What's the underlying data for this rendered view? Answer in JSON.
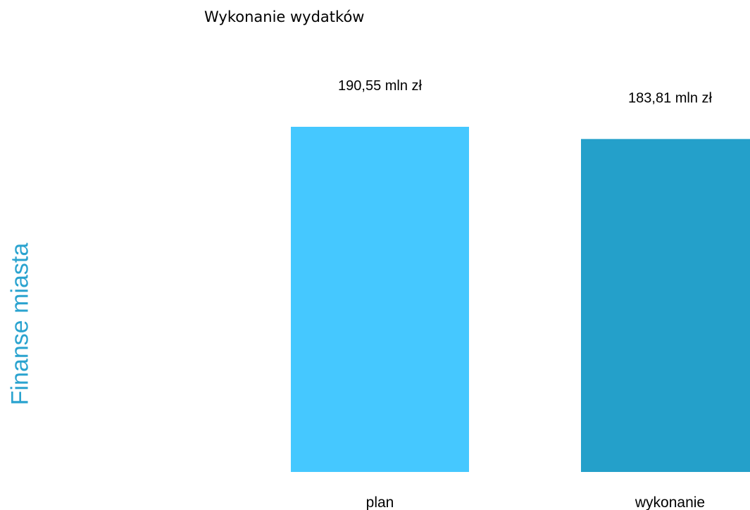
{
  "section_label": "Finanse miasta",
  "colors": {
    "section_label": "#2aa3cf",
    "plan": "#45c8ff",
    "wykonanie": "#24a0ca"
  },
  "chart_data": {
    "type": "bar",
    "title": "Wykonanie wydatków",
    "xlabel": "",
    "ylabel": "",
    "ylim": [
      0,
      190.55
    ],
    "categories": [
      "plan",
      "wykonanie"
    ],
    "values": [
      190.55,
      183.81
    ],
    "value_labels": [
      "190,55 mln zł",
      "183,81 mln zł"
    ],
    "grid": false,
    "legend": "none"
  }
}
